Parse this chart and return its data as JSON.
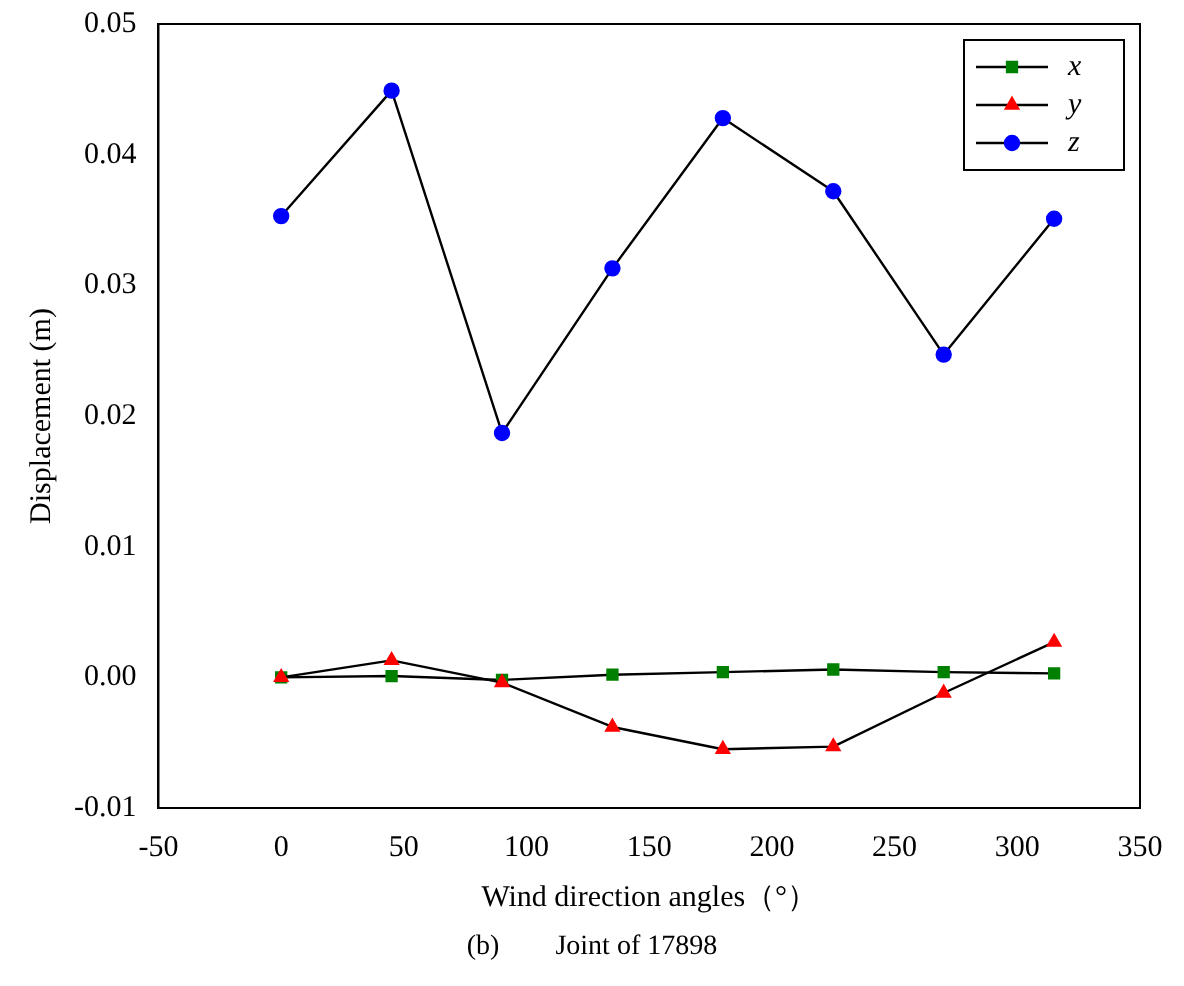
{
  "chart_data": {
    "type": "line",
    "xlabel": "Wind direction angles（°）",
    "ylabel": "Displacement (m)",
    "x": [
      0,
      45,
      90,
      135,
      180,
      225,
      270,
      315
    ],
    "series": [
      {
        "name": "x",
        "color": "#008000",
        "marker": "square",
        "values": [
          0,
          0.0001,
          -0.0002,
          0.0002,
          0.0004,
          0.0006,
          0.0004,
          0.0003
        ]
      },
      {
        "name": "y",
        "color": "#ff0000",
        "marker": "triangle",
        "values": [
          0,
          0.0013,
          -0.0004,
          -0.0038,
          -0.0055,
          -0.0053,
          -0.0012,
          0.0027
        ]
      },
      {
        "name": "z",
        "color": "#0000ff",
        "marker": "circle",
        "values": [
          0.0353,
          0.0449,
          0.0187,
          0.0313,
          0.0428,
          0.0372,
          0.0247,
          0.0351
        ]
      }
    ],
    "xlim": [
      -50,
      350
    ],
    "xticks": [
      -50,
      0,
      50,
      100,
      150,
      200,
      250,
      300,
      350
    ],
    "ylim": [
      -0.01,
      0.05
    ],
    "yticks": [
      {
        "value": -0.01,
        "label": "-0.01"
      },
      {
        "value": 0,
        "label": "0.00"
      },
      {
        "value": 0.01,
        "label": "0.01"
      },
      {
        "value": 0.02,
        "label": "0.02"
      },
      {
        "value": 0.03,
        "label": "0.03"
      },
      {
        "value": 0.04,
        "label": "0.04"
      },
      {
        "value": 0.05,
        "label": "0.05"
      }
    ],
    "grid": false,
    "legend": "top right",
    "line_style": "solid",
    "annotations": [
      "(b)        Joint of 17898"
    ]
  }
}
